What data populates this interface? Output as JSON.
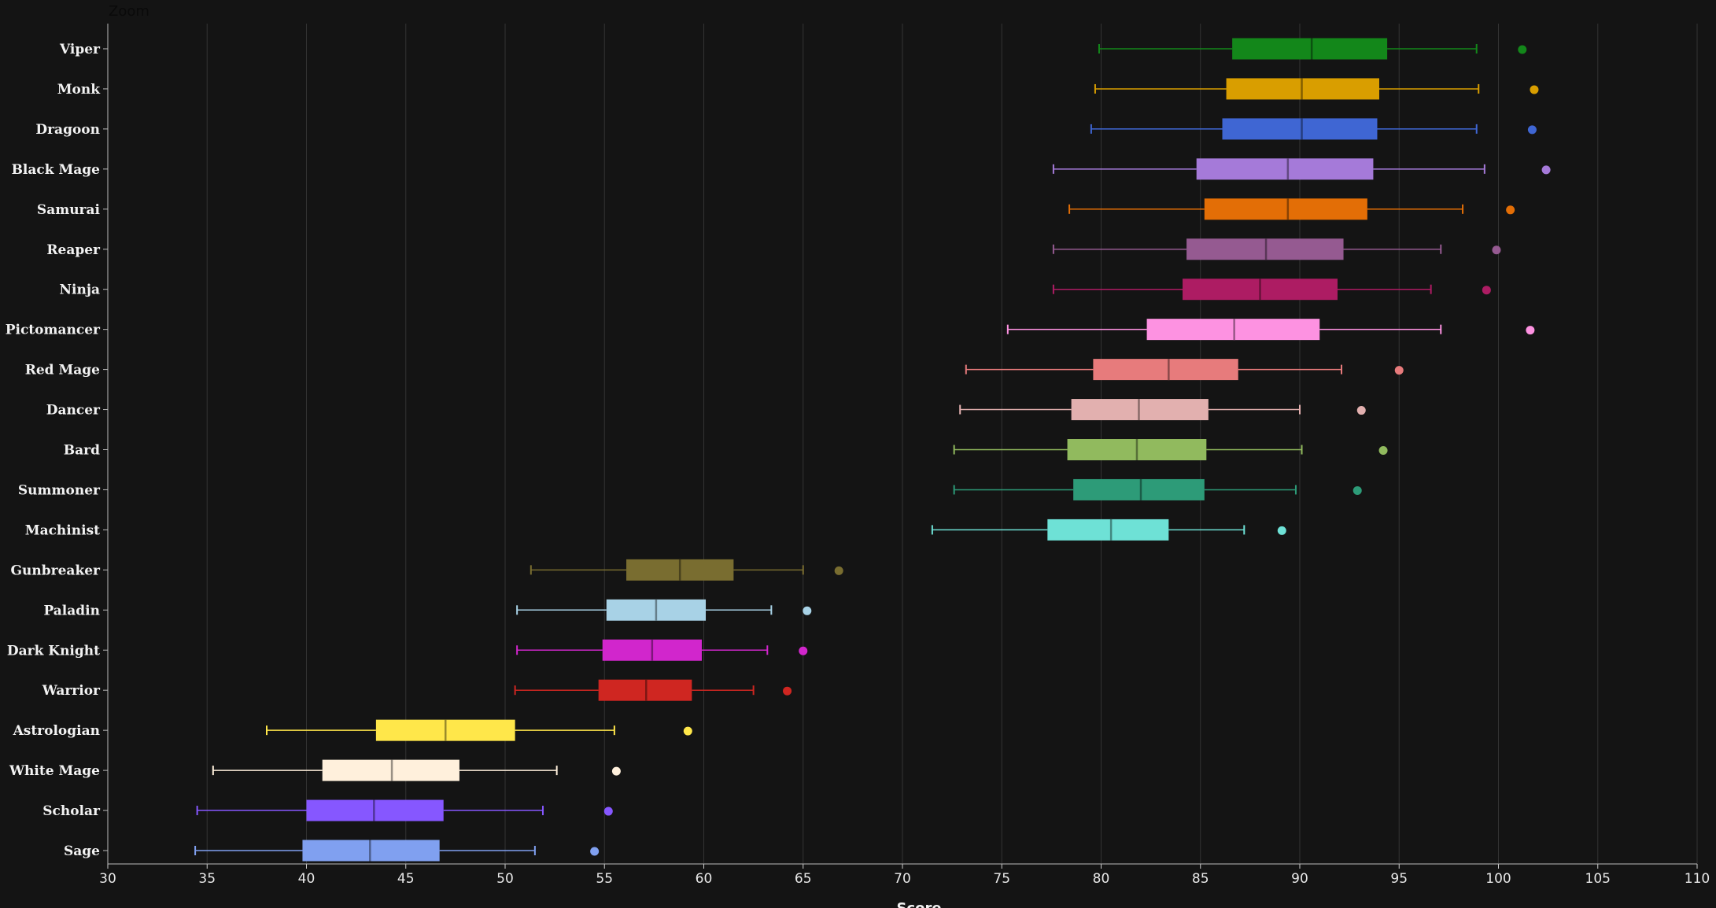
{
  "zoom_label": "Zoom",
  "chart_data": {
    "type": "box",
    "xlabel": "Score",
    "xlim": [
      30,
      110
    ],
    "xticks": [
      30,
      35,
      40,
      45,
      50,
      55,
      60,
      65,
      70,
      75,
      80,
      85,
      90,
      95,
      100,
      105,
      110
    ],
    "grid": "vertical",
    "background": "#141414",
    "series": [
      {
        "name": "Viper",
        "color": "#13871a",
        "whisker_low": 79.9,
        "q1": 86.6,
        "median": 90.6,
        "q3": 94.4,
        "whisker_high": 98.9,
        "outliers": [
          101.2
        ]
      },
      {
        "name": "Monk",
        "color": "#d99e00",
        "whisker_low": 79.7,
        "q1": 86.3,
        "median": 90.1,
        "q3": 94.0,
        "whisker_high": 99.0,
        "outliers": [
          101.8
        ]
      },
      {
        "name": "Dragoon",
        "color": "#3f66d3",
        "whisker_low": 79.5,
        "q1": 86.1,
        "median": 90.1,
        "q3": 93.9,
        "whisker_high": 98.9,
        "outliers": [
          101.7
        ]
      },
      {
        "name": "Black Mage",
        "color": "#a57ad9",
        "whisker_low": 77.6,
        "q1": 84.8,
        "median": 89.4,
        "q3": 93.7,
        "whisker_high": 99.3,
        "outliers": [
          102.4
        ]
      },
      {
        "name": "Samurai",
        "color": "#e36e06",
        "whisker_low": 78.4,
        "q1": 85.2,
        "median": 89.4,
        "q3": 93.4,
        "whisker_high": 98.2,
        "outliers": [
          100.6
        ]
      },
      {
        "name": "Reaper",
        "color": "#955a91",
        "whisker_low": 77.6,
        "q1": 84.3,
        "median": 88.3,
        "q3": 92.2,
        "whisker_high": 97.1,
        "outliers": [
          99.9
        ]
      },
      {
        "name": "Ninja",
        "color": "#ad1c63",
        "whisker_low": 77.6,
        "q1": 84.1,
        "median": 88.0,
        "q3": 91.9,
        "whisker_high": 96.6,
        "outliers": [
          99.4
        ]
      },
      {
        "name": "Pictomancer",
        "color": "#fd92e1",
        "whisker_low": 75.3,
        "q1": 82.3,
        "median": 86.7,
        "q3": 91.0,
        "whisker_high": 97.1,
        "outliers": [
          101.6
        ]
      },
      {
        "name": "Red Mage",
        "color": "#e77b7c",
        "whisker_low": 73.2,
        "q1": 79.6,
        "median": 83.4,
        "q3": 86.9,
        "whisker_high": 92.1,
        "outliers": [
          95.0
        ]
      },
      {
        "name": "Dancer",
        "color": "#e2b0af",
        "whisker_low": 72.9,
        "q1": 78.5,
        "median": 81.9,
        "q3": 85.4,
        "whisker_high": 90.0,
        "outliers": [
          93.1
        ]
      },
      {
        "name": "Bard",
        "color": "#91ba5e",
        "whisker_low": 72.6,
        "q1": 78.3,
        "median": 81.8,
        "q3": 85.3,
        "whisker_high": 90.1,
        "outliers": [
          94.2
        ]
      },
      {
        "name": "Summoner",
        "color": "#2d9b78",
        "whisker_low": 72.6,
        "q1": 78.6,
        "median": 82.0,
        "q3": 85.2,
        "whisker_high": 89.8,
        "outliers": [
          92.9
        ]
      },
      {
        "name": "Machinist",
        "color": "#6ee1d6",
        "whisker_low": 71.5,
        "q1": 77.3,
        "median": 80.5,
        "q3": 83.4,
        "whisker_high": 87.2,
        "outliers": [
          89.1
        ]
      },
      {
        "name": "Gunbreaker",
        "color": "#796d30",
        "whisker_low": 51.3,
        "q1": 56.1,
        "median": 58.8,
        "q3": 61.5,
        "whisker_high": 65.0,
        "outliers": [
          66.8
        ]
      },
      {
        "name": "Paladin",
        "color": "#a8d2e6",
        "whisker_low": 50.6,
        "q1": 55.1,
        "median": 57.6,
        "q3": 60.1,
        "whisker_high": 63.4,
        "outliers": [
          65.2
        ]
      },
      {
        "name": "Dark Knight",
        "color": "#d126cc",
        "whisker_low": 50.6,
        "q1": 54.9,
        "median": 57.4,
        "q3": 59.9,
        "whisker_high": 63.2,
        "outliers": [
          65.0
        ]
      },
      {
        "name": "Warrior",
        "color": "#cf2621",
        "whisker_low": 50.5,
        "q1": 54.7,
        "median": 57.1,
        "q3": 59.4,
        "whisker_high": 62.5,
        "outliers": [
          64.2
        ]
      },
      {
        "name": "Astrologian",
        "color": "#ffe74a",
        "whisker_low": 38.0,
        "q1": 43.5,
        "median": 47.0,
        "q3": 50.5,
        "whisker_high": 55.5,
        "outliers": [
          59.2
        ]
      },
      {
        "name": "White Mage",
        "color": "#fff0dc",
        "whisker_low": 35.3,
        "q1": 40.8,
        "median": 44.3,
        "q3": 47.7,
        "whisker_high": 52.6,
        "outliers": [
          55.6
        ]
      },
      {
        "name": "Scholar",
        "color": "#8657ff",
        "whisker_low": 34.5,
        "q1": 40.0,
        "median": 43.4,
        "q3": 46.9,
        "whisker_high": 51.9,
        "outliers": [
          55.2
        ]
      },
      {
        "name": "Sage",
        "color": "#80a0f0",
        "whisker_low": 34.4,
        "q1": 39.8,
        "median": 43.2,
        "q3": 46.7,
        "whisker_high": 51.5,
        "outliers": [
          54.5
        ]
      }
    ]
  }
}
